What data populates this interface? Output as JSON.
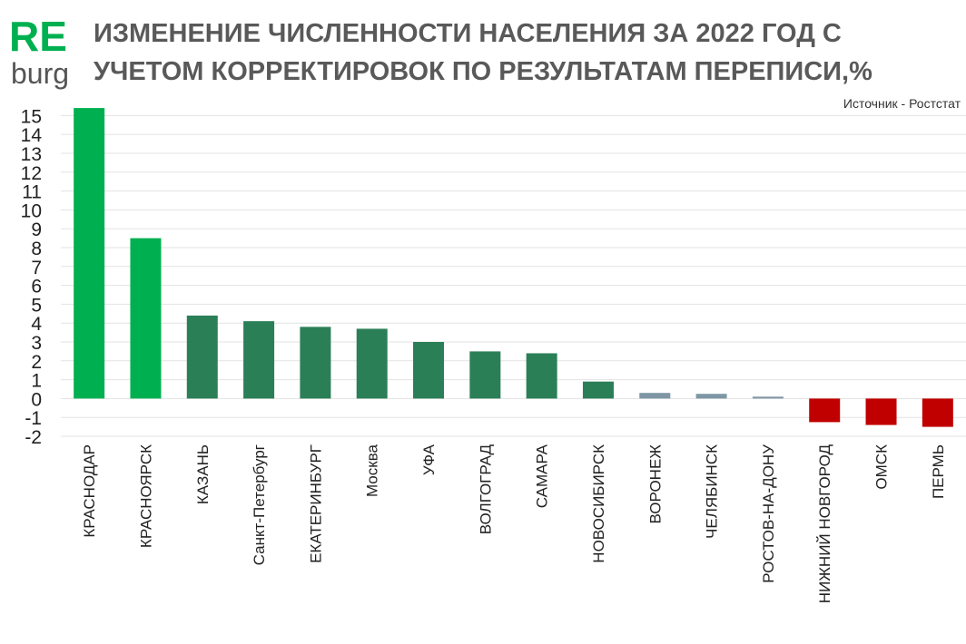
{
  "logo": [
    "RE",
    "burg"
  ],
  "chart_data": {
    "type": "bar",
    "title": [
      "ИЗМЕНЕНИЕ ЧИСЛЕННОСТИ НАСЕЛЕНИЯ ЗА 2022 ГОД С",
      "УЧЕТОМ КОРРЕКТИРОВОК ПО РЕЗУЛЬТАТАМ ПЕРЕПИСИ,%"
    ],
    "source": "Источник - Ростстат",
    "categories": [
      "КРАСНОДАР",
      "КРАСНОЯРСК",
      "КАЗАНЬ",
      "Санкт-Петербург",
      "ЕКАТЕРИНБУРГ",
      "Москва",
      "УФА",
      "ВОЛГОГРАД",
      "САМАРА",
      "НОВОСИБИРСК",
      "ВОРОНЕЖ",
      "ЧЕЛЯБИНСК",
      "РОСТОВ-НА-ДОНУ",
      "НИЖНИЙ НОВГОРОД",
      "ОМСК",
      "ПЕРМЬ"
    ],
    "values": [
      15.4,
      8.5,
      4.4,
      4.1,
      3.8,
      3.7,
      3.0,
      2.5,
      2.4,
      0.9,
      0.3,
      0.25,
      0.1,
      -1.25,
      -1.4,
      -1.5
    ],
    "colors": [
      "#00b050",
      "#00b050",
      "#2b7f57",
      "#2b7f57",
      "#2b7f57",
      "#2b7f57",
      "#2b7f57",
      "#2b7f57",
      "#2b7f57",
      "#2b7f57",
      "#7f97a5",
      "#7f97a5",
      "#7f97a5",
      "#c00000",
      "#c00000",
      "#c00000"
    ],
    "ylim": [
      -2,
      15.5
    ],
    "yticks": [
      -2,
      -1,
      0,
      1,
      2,
      3,
      4,
      5,
      6,
      7,
      8,
      9,
      10,
      11,
      12,
      13,
      14,
      15
    ],
    "grid": true
  }
}
